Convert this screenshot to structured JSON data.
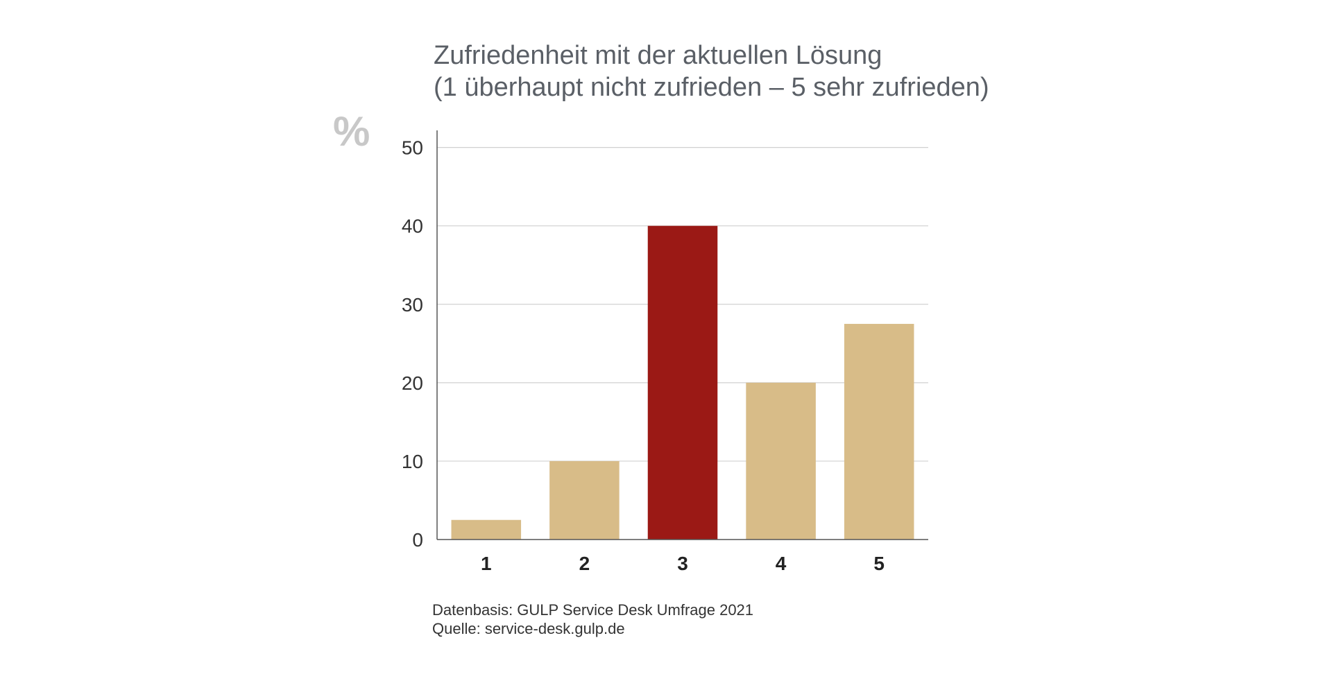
{
  "chart_data": {
    "type": "bar",
    "title": "Zufriedenheit mit der aktuellen Lösung",
    "subtitle": "(1 überhaupt nicht zufrieden – 5 sehr zufrieden)",
    "unit_label": "%",
    "categories": [
      "1",
      "2",
      "3",
      "4",
      "5"
    ],
    "values": [
      2.5,
      10,
      40,
      20,
      27.5
    ],
    "ylim": [
      0,
      52
    ],
    "yticks": [
      0,
      10,
      20,
      30,
      40,
      50
    ],
    "grid": true,
    "highlight_index": 2,
    "colors": {
      "bar": "#d8bc88",
      "highlight": "#9b1915",
      "grid": "#d0d0d0",
      "axis": "#555555"
    }
  },
  "footer": {
    "data_basis": "Datenbasis: GULP Service Desk Umfrage 2021",
    "source": "Quelle: service-desk.gulp.de"
  }
}
